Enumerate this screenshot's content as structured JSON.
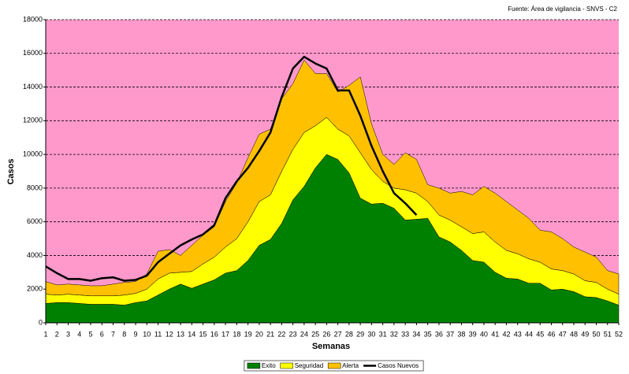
{
  "chart_data": {
    "type": "area",
    "source": "Fuente: Área de vigilancia - SNVS - C2",
    "x_label": "Semanas",
    "y_label": "Casos",
    "background": "#ff99cc",
    "categories": [
      1,
      2,
      3,
      4,
      5,
      6,
      7,
      8,
      9,
      10,
      11,
      12,
      13,
      14,
      15,
      16,
      17,
      18,
      19,
      20,
      21,
      22,
      23,
      24,
      25,
      26,
      27,
      28,
      29,
      30,
      31,
      32,
      33,
      34,
      35,
      36,
      37,
      38,
      39,
      40,
      41,
      42,
      43,
      44,
      45,
      46,
      47,
      48,
      49,
      50,
      51,
      52
    ],
    "ylim": [
      0,
      18000
    ],
    "yticks": [
      0,
      2000,
      4000,
      6000,
      8000,
      10000,
      12000,
      14000,
      16000,
      18000
    ],
    "grid": true,
    "series": [
      {
        "name": "Exito",
        "color": "#008000",
        "type": "area",
        "values": [
          1150,
          1200,
          1200,
          1150,
          1100,
          1100,
          1100,
          1050,
          1200,
          1300,
          1650,
          2000,
          2300,
          2050,
          2300,
          2550,
          2950,
          3100,
          3700,
          4600,
          4950,
          5900,
          7300,
          8100,
          9200,
          10000,
          9700,
          8900,
          7400,
          7050,
          7100,
          6800,
          6100,
          6150,
          6200,
          5100,
          4800,
          4300,
          3700,
          3600,
          3000,
          2650,
          2600,
          2350,
          2350,
          1950,
          2000,
          1850,
          1550,
          1500,
          1300,
          1050
        ]
      },
      {
        "name": "Seguridad",
        "color": "#ffff00",
        "type": "area",
        "values": [
          550,
          450,
          500,
          500,
          500,
          500,
          500,
          600,
          550,
          700,
          950,
          950,
          700,
          1000,
          1200,
          1350,
          1550,
          1900,
          2300,
          2600,
          2650,
          3100,
          3000,
          3200,
          2500,
          2200,
          1800,
          2200,
          2700,
          2050,
          1300,
          1200,
          1800,
          1550,
          1000,
          1300,
          1300,
          1400,
          1600,
          1800,
          1800,
          1650,
          1500,
          1450,
          1250,
          1250,
          1100,
          1050,
          950,
          900,
          700,
          650
        ]
      },
      {
        "name": "Alerta",
        "color": "#ffc000",
        "type": "area",
        "values": [
          750,
          600,
          600,
          600,
          600,
          600,
          700,
          750,
          700,
          900,
          1650,
          1400,
          1000,
          1550,
          1700,
          1800,
          2700,
          3300,
          3800,
          4000,
          3900,
          4300,
          3900,
          4300,
          3100,
          2600,
          2200,
          3000,
          4500,
          2700,
          1600,
          1400,
          2200,
          2000,
          1000,
          1600,
          1600,
          2100,
          2300,
          2700,
          2900,
          2900,
          2600,
          2400,
          1900,
          2200,
          1900,
          1600,
          1700,
          1500,
          1100,
          1200
        ]
      },
      {
        "name": "Casos Nuevos",
        "color": "#000000",
        "type": "line",
        "values": [
          3350,
          2950,
          2600,
          2600,
          2500,
          2650,
          2700,
          2500,
          2550,
          2800,
          3600,
          4100,
          4600,
          4950,
          5250,
          5800,
          7400,
          8400,
          9200,
          10200,
          11300,
          13400,
          15100,
          15800,
          15400,
          15100,
          13800,
          13800,
          12300,
          10500,
          9000,
          7700,
          7100,
          6400,
          null,
          null,
          null,
          null,
          null,
          null,
          null,
          null,
          null,
          null,
          null,
          null,
          null,
          null,
          null,
          null,
          null,
          null
        ]
      }
    ]
  }
}
